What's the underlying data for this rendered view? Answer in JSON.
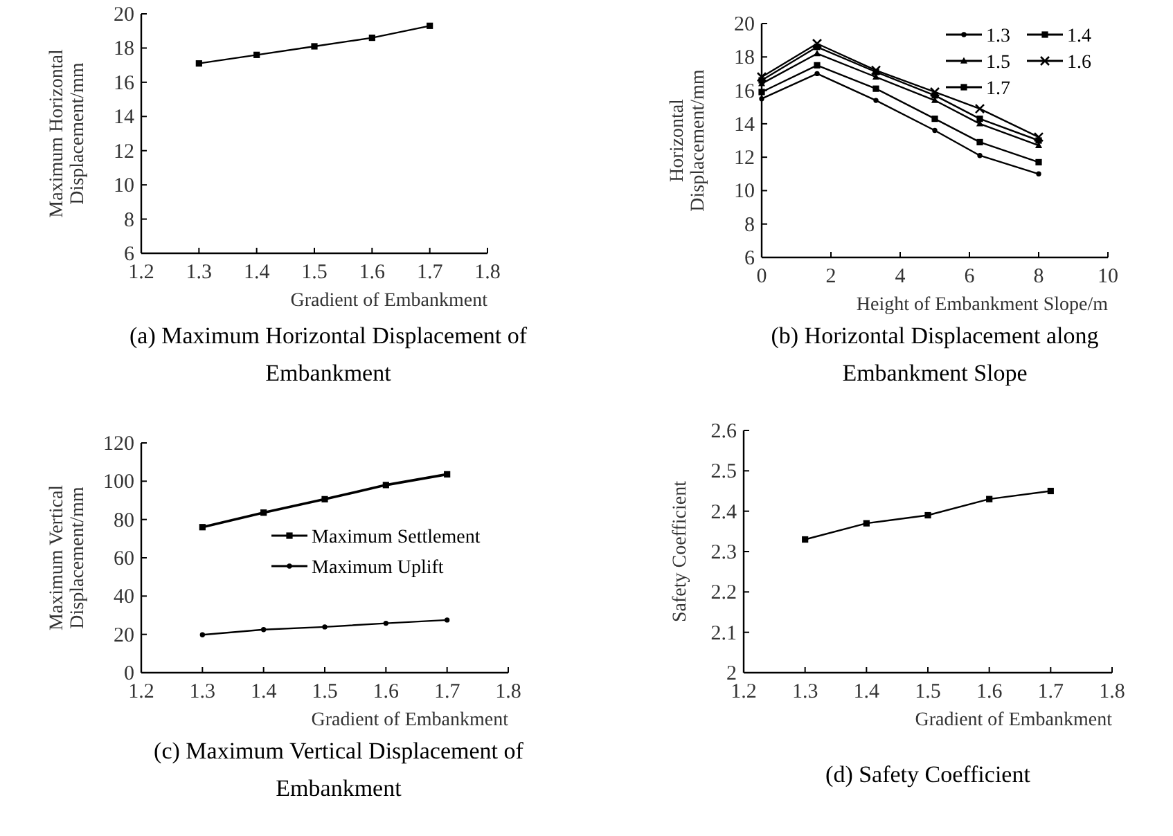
{
  "chart_data": [
    {
      "type": "line",
      "title": "(a) Maximum Horizontal Displacement of Embankment",
      "xlabel": "Gradient of Embankment",
      "ylabel": "Maximum Horizontal Displacement/mm",
      "x": [
        1.3,
        1.4,
        1.5,
        1.6,
        1.7
      ],
      "values": [
        17.1,
        17.6,
        18.1,
        18.6,
        19.3
      ],
      "color": "#000000",
      "xlim": [
        1.2,
        1.8
      ],
      "xticks": [
        1.2,
        1.3,
        1.4,
        1.5,
        1.6,
        1.7,
        1.8
      ],
      "ylim": [
        6,
        20
      ],
      "yticks": [
        6,
        8,
        10,
        12,
        14,
        16,
        18,
        20
      ],
      "marker": "square",
      "grid": false,
      "legend": false
    },
    {
      "type": "line",
      "title": "(b) Horizontal Displacement along Embankment Slope",
      "xlabel": "Height of Embankment Slope/m",
      "ylabel": "Horizontal Displacement/mm",
      "x": [
        0,
        1.6,
        3.3,
        5,
        6.3,
        8
      ],
      "series": [
        {
          "name": "1.3",
          "color": "#000000",
          "marker": "circle",
          "values": [
            15.5,
            17.0,
            15.4,
            13.6,
            12.1,
            11.0
          ]
        },
        {
          "name": "1.4",
          "color": "#000000",
          "marker": "square",
          "values": [
            15.9,
            17.5,
            16.1,
            14.3,
            12.9,
            11.7
          ]
        },
        {
          "name": "1.5",
          "color": "#000000",
          "marker": "triangle",
          "values": [
            16.4,
            18.2,
            16.8,
            15.4,
            14.0,
            12.7
          ]
        },
        {
          "name": "1.6",
          "color": "#000000",
          "marker": "cross",
          "values": [
            16.8,
            18.8,
            17.2,
            15.9,
            14.9,
            13.2
          ]
        },
        {
          "name": "1.7",
          "color": "#000000",
          "marker": "square",
          "values": [
            16.6,
            18.6,
            17.1,
            15.7,
            14.3,
            13.0
          ]
        }
      ],
      "xlim": [
        0,
        10
      ],
      "xticks": [
        0,
        2,
        4,
        6,
        8,
        10
      ],
      "ylim": [
        6,
        20
      ],
      "yticks": [
        6,
        8,
        10,
        12,
        14,
        16,
        18,
        20
      ],
      "grid": false,
      "legend": "top right"
    },
    {
      "type": "line",
      "title": "(c) Maximum Vertical Displacement of Embankment",
      "xlabel": "Gradient of Embankment",
      "ylabel": "Maximum Vertical Displacement/mm",
      "x": [
        1.3,
        1.4,
        1.5,
        1.6,
        1.7
      ],
      "series": [
        {
          "name": "Maximum Settlement",
          "color": "#000000",
          "marker": "square",
          "values": [
            76,
            83.6,
            90.6,
            98,
            103.6
          ]
        },
        {
          "name": "Maximum Uplift",
          "color": "#000000",
          "marker": "circle",
          "values": [
            19.8,
            22.5,
            23.9,
            25.8,
            27.5
          ]
        }
      ],
      "xlim": [
        1.2,
        1.8
      ],
      "xticks": [
        1.2,
        1.3,
        1.4,
        1.5,
        1.6,
        1.7,
        1.8
      ],
      "ylim": [
        0,
        120
      ],
      "yticks": [
        0,
        20,
        40,
        60,
        80,
        100,
        120
      ],
      "grid": false,
      "legend": "right"
    },
    {
      "type": "line",
      "title": "(d) Safety Coefficient",
      "xlabel": "Gradient of Embankment",
      "ylabel": "Safety Coefficient",
      "x": [
        1.3,
        1.4,
        1.5,
        1.6,
        1.7
      ],
      "values": [
        2.33,
        2.37,
        2.39,
        2.43,
        2.45
      ],
      "color": "#000000",
      "xlim": [
        1.2,
        1.8
      ],
      "xticks": [
        1.2,
        1.3,
        1.4,
        1.5,
        1.6,
        1.7,
        1.8
      ],
      "ylim": [
        2,
        2.6
      ],
      "yticks": [
        2,
        2.1,
        2.2,
        2.3,
        2.4,
        2.5,
        2.6
      ],
      "marker": "square",
      "grid": false,
      "legend": false
    }
  ]
}
